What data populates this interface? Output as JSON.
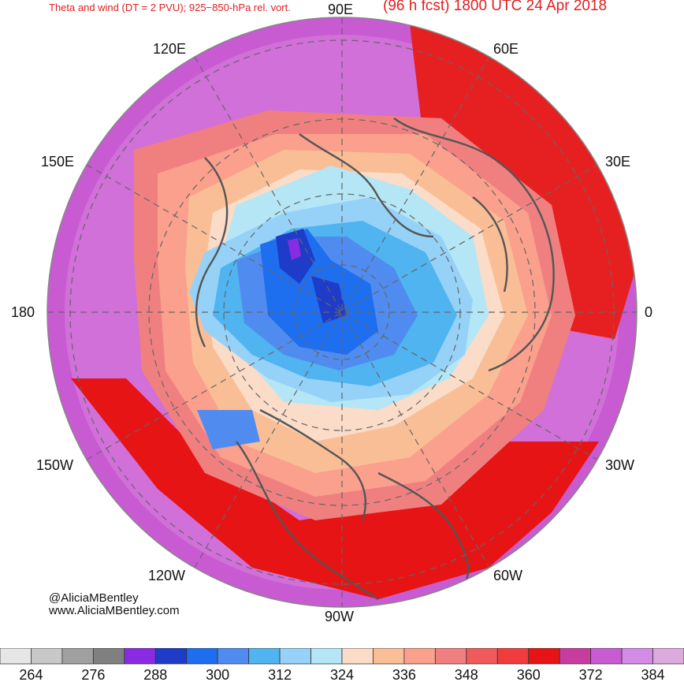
{
  "header": {
    "left_title": "Theta and wind (DT = 2 PVU); 925−850-hPa rel. vort.",
    "right_title": "(96 h fcst) 1800 UTC 24 Apr 2018"
  },
  "longitude_labels": {
    "lon_90e": "90E",
    "lon_120e": "120E",
    "lon_60e": "60E",
    "lon_150e": "150E",
    "lon_30e": "30E",
    "lon_180": "180",
    "lon_0": "0",
    "lon_150w": "150W",
    "lon_30w": "30W",
    "lon_120w": "120W",
    "lon_60w": "60W",
    "lon_90w": "90W"
  },
  "credits": {
    "twitter": "@AliciaMBentley",
    "website": "www.AliciaMBentley.com"
  },
  "colorbar": {
    "units_labels": [
      "264",
      "276",
      "288",
      "300",
      "312",
      "324",
      "336",
      "348",
      "360",
      "372",
      "384"
    ],
    "colors": [
      "#e6e6e6",
      "#c8c8c8",
      "#a0a0a0",
      "#808080",
      "#8a2be2",
      "#1e3cc8",
      "#1e6ef0",
      "#508cf0",
      "#50b4f0",
      "#96d2f8",
      "#b4e6f5",
      "#fadcc8",
      "#fabe96",
      "#faa08c",
      "#f08080",
      "#f05a5a",
      "#f03c3c",
      "#e61414",
      "#c83ca0",
      "#c85ad2",
      "#d28ce6",
      "#dcaadc"
    ]
  }
}
